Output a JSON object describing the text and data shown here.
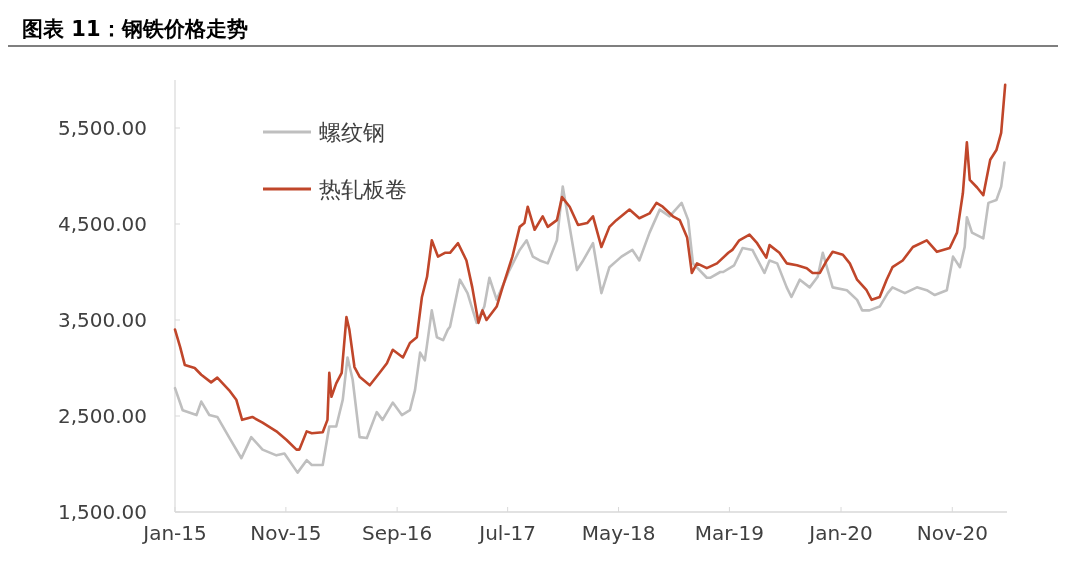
{
  "chart_data": {
    "type": "line",
    "title": "图表 11：钢铁价格走势",
    "xlim": [
      "2015-01-01",
      "2021-03-31"
    ],
    "xticks": [
      {
        "value": "2015-01-01",
        "label": "Jan-15"
      },
      {
        "value": "2015-11-01",
        "label": "Nov-15"
      },
      {
        "value": "2016-09-01",
        "label": "Sep-16"
      },
      {
        "value": "2017-07-01",
        "label": "Jul-17"
      },
      {
        "value": "2018-05-01",
        "label": "May-18"
      },
      {
        "value": "2019-03-01",
        "label": "Mar-19"
      },
      {
        "value": "2020-01-01",
        "label": "Jan-20"
      },
      {
        "value": "2020-11-01",
        "label": "Nov-20"
      }
    ],
    "ylim": [
      1500,
      6000
    ],
    "yticks": [
      {
        "value": 1500,
        "label": "1,500.00"
      },
      {
        "value": 2500,
        "label": "2,500.00"
      },
      {
        "value": 3500,
        "label": "3,500.00"
      },
      {
        "value": 4500,
        "label": "4,500.00"
      },
      {
        "value": 5500,
        "label": "5,500.00"
      }
    ],
    "grid": false,
    "legend": "top left",
    "marker": "none",
    "line_style": "solid",
    "series": [
      {
        "name": "螺纹钢",
        "color": "#bfbfbf",
        "x": [
          "2015-01-01",
          "2015-01-22",
          "2015-03-01",
          "2015-03-14",
          "2015-04-05",
          "2015-04-27",
          "2015-05-29",
          "2015-07-02",
          "2015-07-29",
          "2015-08-29",
          "2015-10-06",
          "2015-10-28",
          "2015-12-03",
          "2015-12-28",
          "2016-01-11",
          "2016-02-10",
          "2016-02-28",
          "2016-03-18",
          "2016-04-05",
          "2016-04-18",
          "2016-05-02",
          "2016-05-21",
          "2016-06-10",
          "2016-07-07",
          "2016-07-23",
          "2016-08-20",
          "2016-09-14",
          "2016-10-06",
          "2016-10-20",
          "2016-11-03",
          "2016-11-16",
          "2016-12-05",
          "2016-12-19",
          "2017-01-05",
          "2017-01-18",
          "2017-01-24",
          "2017-02-20",
          "2017-03-13",
          "2017-04-07",
          "2017-04-28",
          "2017-05-12",
          "2017-06-01",
          "2017-07-06",
          "2017-08-03",
          "2017-08-22",
          "2017-09-08",
          "2017-09-27",
          "2017-10-19",
          "2017-11-13",
          "2017-11-29",
          "2017-12-18",
          "2018-01-07",
          "2018-01-24",
          "2018-02-20",
          "2018-03-15",
          "2018-04-06",
          "2018-05-09",
          "2018-06-08",
          "2018-06-27",
          "2018-07-25",
          "2018-08-22",
          "2018-09-18",
          "2018-10-21",
          "2018-11-08",
          "2018-11-21",
          "2018-12-29",
          "2019-01-07",
          "2019-02-04",
          "2019-02-12",
          "2019-03-14",
          "2019-04-06",
          "2019-05-03",
          "2019-06-05",
          "2019-06-19",
          "2019-07-10",
          "2019-08-05",
          "2019-08-18",
          "2019-09-10",
          "2019-10-07",
          "2019-10-29",
          "2019-11-12",
          "2019-12-09",
          "2020-01-17",
          "2020-02-14",
          "2020-02-28",
          "2020-03-19",
          "2020-04-16",
          "2020-05-08",
          "2020-05-21",
          "2020-06-24",
          "2020-07-27",
          "2020-08-23",
          "2020-09-14",
          "2020-10-17",
          "2020-11-03",
          "2020-11-22",
          "2020-12-05",
          "2020-12-11",
          "2020-12-25",
          "2021-01-25",
          "2021-02-08",
          "2021-03-02",
          "2021-03-15",
          "2021-03-24"
        ],
        "values": [
          2790,
          2560,
          2510,
          2650,
          2510,
          2490,
          2280,
          2060,
          2280,
          2150,
          2090,
          2110,
          1910,
          2040,
          1990,
          1990,
          2390,
          2390,
          2670,
          3110,
          2880,
          2280,
          2270,
          2540,
          2460,
          2640,
          2510,
          2560,
          2770,
          3160,
          3080,
          3600,
          3320,
          3290,
          3400,
          3430,
          3920,
          3780,
          3470,
          3640,
          3940,
          3710,
          4020,
          4230,
          4330,
          4160,
          4120,
          4090,
          4330,
          4890,
          4470,
          4020,
          4120,
          4300,
          3780,
          4050,
          4160,
          4230,
          4120,
          4410,
          4650,
          4580,
          4720,
          4540,
          4090,
          3940,
          3940,
          4000,
          4000,
          4070,
          4250,
          4230,
          3990,
          4120,
          4090,
          3840,
          3740,
          3920,
          3840,
          3950,
          4200,
          3840,
          3810,
          3710,
          3600,
          3600,
          3640,
          3780,
          3840,
          3780,
          3840,
          3810,
          3760,
          3810,
          4160,
          4050,
          4260,
          4570,
          4410,
          4350,
          4720,
          4750,
          4890,
          5140
        ]
      },
      {
        "name": "热轧板卷",
        "color": "#c0462a",
        "x": [
          "2015-01-01",
          "2015-01-15",
          "2015-01-28",
          "2015-02-24",
          "2015-03-14",
          "2015-04-10",
          "2015-04-27",
          "2015-05-29",
          "2015-06-18",
          "2015-07-04",
          "2015-08-01",
          "2015-08-29",
          "2015-10-06",
          "2015-11-03",
          "2015-11-30",
          "2015-12-08",
          "2015-12-28",
          "2016-01-11",
          "2016-02-10",
          "2016-02-23",
          "2016-02-28",
          "2016-03-05",
          "2016-03-18",
          "2016-04-02",
          "2016-04-15",
          "2016-04-23",
          "2016-05-07",
          "2016-05-21",
          "2016-06-18",
          "2016-07-15",
          "2016-08-04",
          "2016-08-20",
          "2016-09-17",
          "2016-10-06",
          "2016-10-25",
          "2016-11-08",
          "2016-11-22",
          "2016-12-05",
          "2016-12-22",
          "2017-01-10",
          "2017-01-24",
          "2017-02-15",
          "2017-03-10",
          "2017-03-26",
          "2017-04-12",
          "2017-04-23",
          "2017-05-04",
          "2017-06-01",
          "2017-06-17",
          "2017-07-14",
          "2017-08-03",
          "2017-08-16",
          "2017-08-25",
          "2017-09-13",
          "2017-10-05",
          "2017-10-19",
          "2017-11-13",
          "2017-11-27",
          "2017-12-18",
          "2018-01-10",
          "2018-02-04",
          "2018-02-20",
          "2018-03-15",
          "2018-04-06",
          "2018-04-25",
          "2018-05-31",
          "2018-06-27",
          "2018-07-25",
          "2018-08-13",
          "2018-08-30",
          "2018-09-27",
          "2018-10-16",
          "2018-11-05",
          "2018-11-18",
          "2018-12-02",
          "2018-12-29",
          "2019-01-26",
          "2019-02-26",
          "2019-03-09",
          "2019-03-28",
          "2019-04-25",
          "2019-05-16",
          "2019-06-10",
          "2019-06-19",
          "2019-07-16",
          "2019-08-05",
          "2019-09-02",
          "2019-09-29",
          "2019-10-15",
          "2019-11-04",
          "2019-11-23",
          "2019-12-09",
          "2020-01-06",
          "2020-01-25",
          "2020-02-14",
          "2020-03-11",
          "2020-03-25",
          "2020-04-16",
          "2020-05-05",
          "2020-05-21",
          "2020-06-18",
          "2020-07-16",
          "2020-08-23",
          "2020-09-20",
          "2020-10-25",
          "2020-11-14",
          "2020-11-30",
          "2020-12-11",
          "2020-12-19",
          "2021-01-08",
          "2021-01-25",
          "2021-02-13",
          "2021-03-02",
          "2021-03-15",
          "2021-03-26"
        ],
        "values": [
          3400,
          3220,
          3030,
          3000,
          2930,
          2850,
          2900,
          2770,
          2670,
          2460,
          2490,
          2430,
          2340,
          2250,
          2150,
          2150,
          2340,
          2320,
          2330,
          2460,
          2950,
          2700,
          2840,
          2950,
          3530,
          3400,
          3010,
          2910,
          2820,
          2950,
          3050,
          3190,
          3110,
          3260,
          3320,
          3740,
          3950,
          4330,
          4160,
          4200,
          4200,
          4300,
          4120,
          3840,
          3470,
          3600,
          3500,
          3640,
          3840,
          4160,
          4470,
          4510,
          4680,
          4440,
          4580,
          4470,
          4540,
          4780,
          4680,
          4490,
          4510,
          4580,
          4260,
          4470,
          4540,
          4650,
          4560,
          4610,
          4720,
          4680,
          4580,
          4540,
          4360,
          3990,
          4090,
          4040,
          4090,
          4200,
          4230,
          4330,
          4390,
          4300,
          4150,
          4280,
          4200,
          4090,
          4070,
          4040,
          3990,
          3990,
          4120,
          4210,
          4180,
          4090,
          3920,
          3810,
          3710,
          3740,
          3920,
          4050,
          4120,
          4260,
          4330,
          4210,
          4250,
          4410,
          4820,
          5350,
          4960,
          4880,
          4800,
          5170,
          5270,
          5450,
          5950
        ]
      }
    ]
  }
}
